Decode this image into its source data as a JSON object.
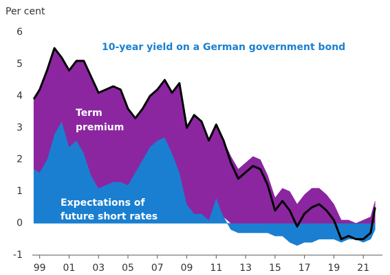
{
  "chart_data": {
    "type": "area",
    "y_axis_label": "Per cent",
    "title": "10-year yield on a German government bond",
    "term_premium_label": [
      "Term",
      "premium"
    ],
    "expectations_label": [
      "Expectations of",
      "future short rates"
    ],
    "stacked": true,
    "x": [
      1998.6,
      1999.0,
      1999.5,
      2000.0,
      2000.5,
      2001.0,
      2001.5,
      2002.0,
      2002.5,
      2003.0,
      2003.5,
      2004.0,
      2004.5,
      2005.0,
      2005.5,
      2006.0,
      2006.5,
      2007.0,
      2007.5,
      2008.0,
      2008.5,
      2009.0,
      2009.5,
      2010.0,
      2010.5,
      2011.0,
      2011.5,
      2012.0,
      2012.5,
      2013.0,
      2013.5,
      2014.0,
      2014.5,
      2015.0,
      2015.5,
      2016.0,
      2016.5,
      2017.0,
      2017.5,
      2018.0,
      2018.5,
      2019.0,
      2019.5,
      2020.0,
      2020.5,
      2021.0,
      2021.5,
      2021.8
    ],
    "series": [
      {
        "type": "area",
        "color": "#1a7fd0",
        "values": [
          1.7,
          1.6,
          2.0,
          2.8,
          3.2,
          2.4,
          2.6,
          2.2,
          1.5,
          1.1,
          1.2,
          1.3,
          1.3,
          1.2,
          1.6,
          2.0,
          2.4,
          2.6,
          2.7,
          2.2,
          1.6,
          0.6,
          0.3,
          0.3,
          0.1,
          0.8,
          0.2,
          -0.2,
          -0.3,
          -0.3,
          -0.3,
          -0.3,
          -0.3,
          -0.4,
          -0.4,
          -0.6,
          -0.7,
          -0.6,
          -0.6,
          -0.5,
          -0.5,
          -0.5,
          -0.6,
          -0.5,
          -0.5,
          -0.6,
          -0.5,
          -0.2
        ]
      },
      {
        "type": "area",
        "color": "#8b26a0",
        "values": [
          2.2,
          2.6,
          2.8,
          2.7,
          2.0,
          2.4,
          2.5,
          2.9,
          3.1,
          3.0,
          3.0,
          3.0,
          2.9,
          2.4,
          1.7,
          1.6,
          1.6,
          1.6,
          1.8,
          1.9,
          2.8,
          2.4,
          3.1,
          2.9,
          2.5,
          2.3,
          2.4,
          2.1,
          1.7,
          1.9,
          2.1,
          2.0,
          1.5,
          0.8,
          1.1,
          1.0,
          0.6,
          0.9,
          1.1,
          1.1,
          0.9,
          0.6,
          0.1,
          0.1,
          0.0,
          0.1,
          0.2,
          0.7
        ]
      },
      {
        "type": "line",
        "color": "#000000",
        "values": [
          3.9,
          4.2,
          4.8,
          5.5,
          5.2,
          4.8,
          5.1,
          5.1,
          4.6,
          4.1,
          4.2,
          4.3,
          4.2,
          3.6,
          3.3,
          3.6,
          4.0,
          4.2,
          4.5,
          4.1,
          4.4,
          3.0,
          3.4,
          3.2,
          2.6,
          3.1,
          2.6,
          1.9,
          1.4,
          1.6,
          1.8,
          1.7,
          1.2,
          0.4,
          0.7,
          0.4,
          -0.1,
          0.3,
          0.5,
          0.6,
          0.4,
          0.1,
          -0.5,
          -0.4,
          -0.5,
          -0.5,
          -0.3,
          0.5
        ]
      }
    ],
    "xlim": [
      1998.5,
      2022.3
    ],
    "xticks": [
      {
        "value": 1999,
        "label": "99"
      },
      {
        "value": 2001,
        "label": "01"
      },
      {
        "value": 2003,
        "label": "03"
      },
      {
        "value": 2005,
        "label": "05"
      },
      {
        "value": 2007,
        "label": "07"
      },
      {
        "value": 2009,
        "label": "09"
      },
      {
        "value": 2011,
        "label": "11"
      },
      {
        "value": 2013,
        "label": "13"
      },
      {
        "value": 2015,
        "label": "15"
      },
      {
        "value": 2017,
        "label": "17"
      },
      {
        "value": 2019,
        "label": "19"
      },
      {
        "value": 2021,
        "label": "21"
      }
    ],
    "ylim": [
      -1,
      6
    ],
    "yticks": [
      -1,
      0,
      1,
      2,
      3,
      4,
      5,
      6
    ],
    "grid": false
  }
}
